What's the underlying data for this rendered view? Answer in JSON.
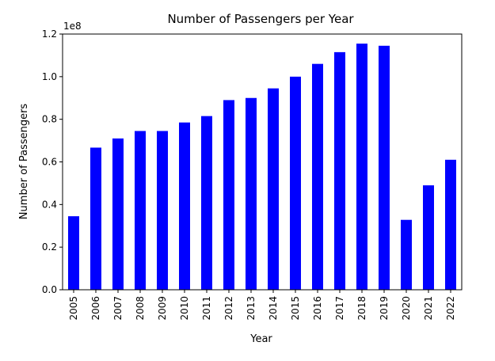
{
  "chart_data": {
    "type": "bar",
    "title": "Number of Passengers per Year",
    "xlabel": "Year",
    "ylabel": "Number of Passengers",
    "y_offset_label": "1e8",
    "ylim": [
      0,
      1.2
    ],
    "yticks": [
      "0.0",
      "0.2",
      "0.4",
      "0.6",
      "0.8",
      "1.0",
      "1.2"
    ],
    "categories": [
      "2005",
      "2006",
      "2007",
      "2008",
      "2009",
      "2010",
      "2011",
      "2012",
      "2013",
      "2014",
      "2015",
      "2016",
      "2017",
      "2018",
      "2019",
      "2020",
      "2021",
      "2022"
    ],
    "values": [
      0.345,
      0.667,
      0.71,
      0.745,
      0.745,
      0.785,
      0.815,
      0.89,
      0.9,
      0.945,
      1.0,
      1.06,
      1.115,
      1.155,
      1.145,
      0.328,
      0.49,
      0.61
    ],
    "bar_color": "#0000ff",
    "grid": false,
    "legend": false
  }
}
